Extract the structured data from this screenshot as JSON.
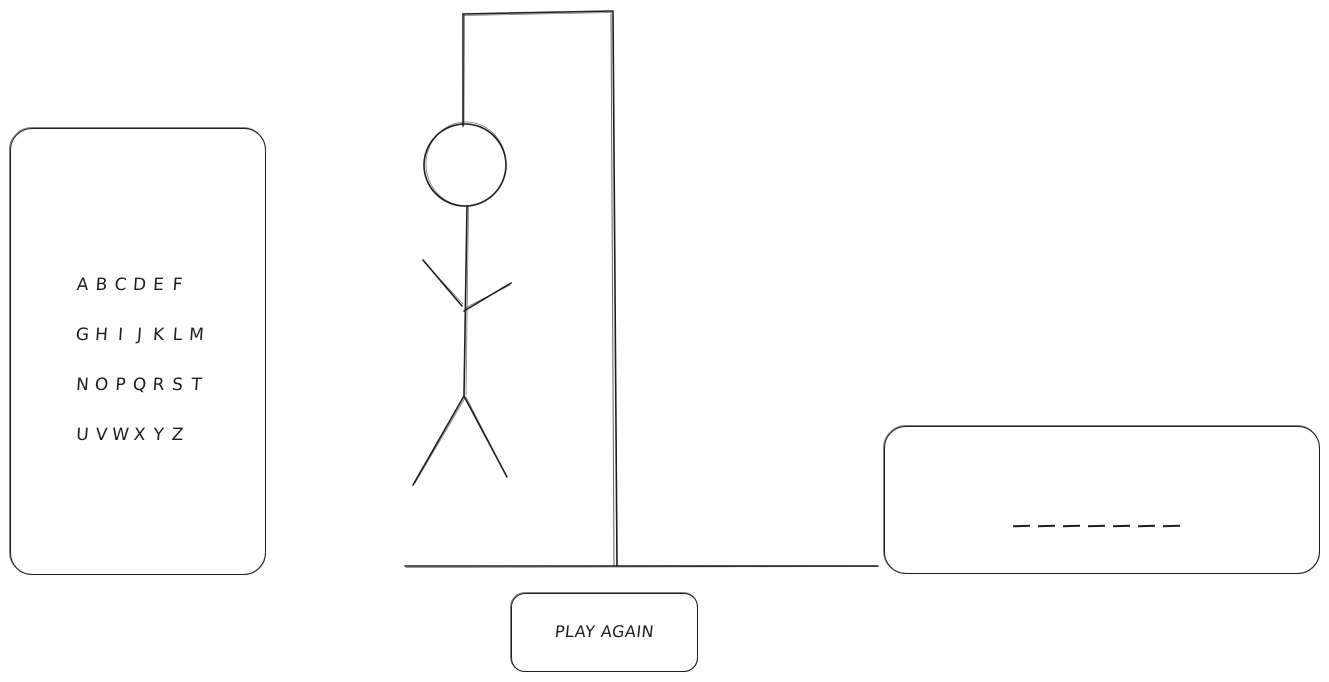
{
  "letters": {
    "row1": [
      "A",
      "B",
      "C",
      "D",
      "E",
      "F"
    ],
    "row2": [
      "G",
      "H",
      "I",
      "J",
      "K",
      "L",
      "M"
    ],
    "row3": [
      "N",
      "O",
      "P",
      "Q",
      "R",
      "S",
      "T"
    ],
    "row4": [
      "U",
      "V",
      "W",
      "X",
      "Y",
      "Z"
    ]
  },
  "word": {
    "blank_count": 7
  },
  "actions": {
    "play_again_label": "PLAY AGAIN"
  },
  "hangman": {
    "parts_shown": [
      "head",
      "body",
      "left-arm",
      "right-arm",
      "left-leg",
      "right-leg"
    ]
  }
}
